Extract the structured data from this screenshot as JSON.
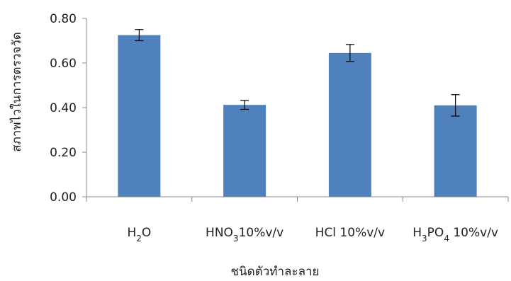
{
  "chart_data": {
    "type": "bar",
    "title": "",
    "xlabel": "ชนิดตัวทำละลาย",
    "ylabel": "สภาพไวในการตรวจวัด",
    "ylim": [
      0,
      0.8
    ],
    "y_ticks": [
      "0.00",
      "0.20",
      "0.40",
      "0.60",
      "0.80"
    ],
    "categories": [
      {
        "main": "H",
        "sub": "2",
        "rest": "O"
      },
      {
        "main": "HNO",
        "sub": "3",
        "rest": "10%v/v"
      },
      {
        "main": "HCl 10%v/v",
        "sub": "",
        "rest": ""
      },
      {
        "main": "H",
        "sub": "3",
        "mid": "PO",
        "sub2": "4",
        "rest": " 10%v/v"
      }
    ],
    "values": [
      0.725,
      0.412,
      0.645,
      0.41
    ],
    "error": [
      0.025,
      0.02,
      0.038,
      0.048
    ],
    "bar_color": "#4f81bd",
    "grid": false,
    "legend": "none"
  }
}
